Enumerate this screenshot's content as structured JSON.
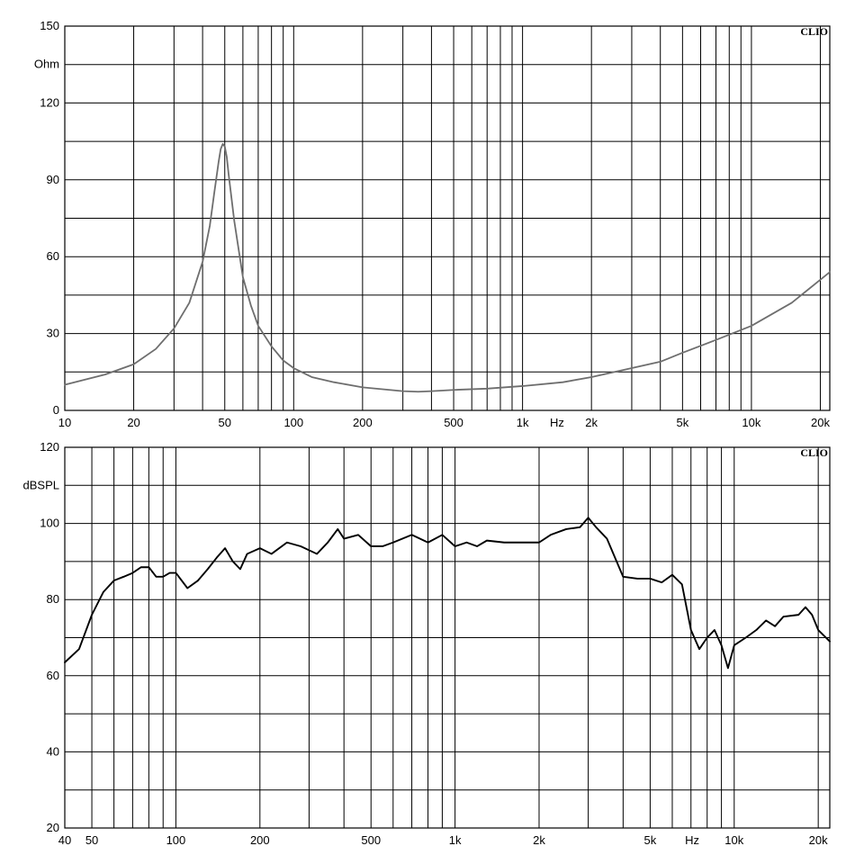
{
  "chart_data": [
    {
      "type": "line",
      "brand": "CLIO",
      "unit_label": "Ohm",
      "x_unit_label": "Hz",
      "xscale": "log",
      "xlim": [
        10,
        22000
      ],
      "ylim": [
        0,
        150
      ],
      "grid": true,
      "x_tick_labels": [
        {
          "value": 10,
          "label": "10"
        },
        {
          "value": 20,
          "label": "20"
        },
        {
          "value": 50,
          "label": "50"
        },
        {
          "value": 100,
          "label": "100"
        },
        {
          "value": 200,
          "label": "200"
        },
        {
          "value": 500,
          "label": "500"
        },
        {
          "value": 1000,
          "label": "1k"
        },
        {
          "value": 2000,
          "label": "2k"
        },
        {
          "value": 5000,
          "label": "5k"
        },
        {
          "value": 10000,
          "label": "10k"
        },
        {
          "value": 20000,
          "label": "20k"
        }
      ],
      "y_tick_labels": [
        {
          "value": 0,
          "label": "0"
        },
        {
          "value": 30,
          "label": "30"
        },
        {
          "value": 60,
          "label": "60"
        },
        {
          "value": 90,
          "label": "90"
        },
        {
          "value": 120,
          "label": "120"
        },
        {
          "value": 150,
          "label": "150"
        }
      ],
      "series": [
        {
          "color": "#6e6e6e",
          "x": [
            10,
            15,
            20,
            25,
            30,
            35,
            40,
            43,
            45,
            47,
            48,
            49,
            50,
            51,
            52,
            55,
            60,
            65,
            70,
            80,
            90,
            100,
            120,
            150,
            200,
            300,
            350,
            400,
            500,
            700,
            1000,
            1500,
            2000,
            3000,
            4000,
            5000,
            7000,
            10000,
            15000,
            22000
          ],
          "y": [
            10,
            14,
            18,
            24,
            32,
            42,
            58,
            72,
            85,
            97,
            102,
            104,
            103,
            99,
            92,
            74,
            52,
            41,
            33,
            25,
            19.5,
            16.5,
            13,
            11,
            9,
            7.5,
            7.3,
            7.5,
            8,
            8.5,
            9.5,
            11,
            13,
            16.5,
            19,
            22.5,
            27.5,
            33,
            42,
            54
          ]
        }
      ]
    },
    {
      "type": "line",
      "brand": "CLIO",
      "unit_label": "dBSPL",
      "x_unit_label": "Hz",
      "xscale": "log",
      "xlim": [
        40,
        22000
      ],
      "ylim": [
        20,
        120
      ],
      "grid": true,
      "x_tick_labels": [
        {
          "value": 40,
          "label": "40"
        },
        {
          "value": 50,
          "label": "50"
        },
        {
          "value": 100,
          "label": "100"
        },
        {
          "value": 200,
          "label": "200"
        },
        {
          "value": 500,
          "label": "500"
        },
        {
          "value": 1000,
          "label": "1k"
        },
        {
          "value": 2000,
          "label": "2k"
        },
        {
          "value": 5000,
          "label": "5k"
        },
        {
          "value": 10000,
          "label": "10k"
        },
        {
          "value": 20000,
          "label": "20k"
        }
      ],
      "y_tick_labels": [
        {
          "value": 20,
          "label": "20"
        },
        {
          "value": 40,
          "label": "40"
        },
        {
          "value": 60,
          "label": "60"
        },
        {
          "value": 80,
          "label": "80"
        },
        {
          "value": 100,
          "label": "100"
        },
        {
          "value": 120,
          "label": "120"
        }
      ],
      "series": [
        {
          "color": "#000000",
          "x": [
            40,
            45,
            50,
            55,
            60,
            65,
            70,
            75,
            80,
            85,
            90,
            95,
            100,
            110,
            120,
            130,
            140,
            150,
            160,
            170,
            180,
            200,
            220,
            250,
            280,
            320,
            350,
            380,
            400,
            450,
            500,
            550,
            600,
            700,
            800,
            900,
            1000,
            1100,
            1200,
            1300,
            1500,
            2000,
            2200,
            2500,
            2800,
            3000,
            3200,
            3500,
            4000,
            4500,
            5000,
            5500,
            6000,
            6500,
            7000,
            7500,
            8000,
            8500,
            9000,
            9500,
            10000,
            11000,
            12000,
            13000,
            14000,
            15000,
            17000,
            18000,
            19000,
            20000,
            22000
          ],
          "y": [
            63.5,
            67,
            76,
            82,
            85,
            86,
            87,
            88.5,
            88.5,
            86,
            86,
            87,
            87,
            83,
            85,
            88,
            91,
            93.5,
            90,
            88,
            92,
            93.5,
            92,
            95,
            94,
            92,
            95,
            98.5,
            96,
            97,
            94,
            94,
            95,
            97,
            95,
            97,
            94,
            95,
            94,
            95.5,
            95,
            95,
            97,
            98.5,
            99,
            101.5,
            99,
            96,
            86,
            85.5,
            85.5,
            84.5,
            86.5,
            84,
            72,
            67,
            70,
            72,
            68,
            62,
            68,
            70,
            72,
            74.5,
            73,
            75.5,
            76,
            78,
            76,
            72,
            69
          ]
        }
      ]
    }
  ]
}
